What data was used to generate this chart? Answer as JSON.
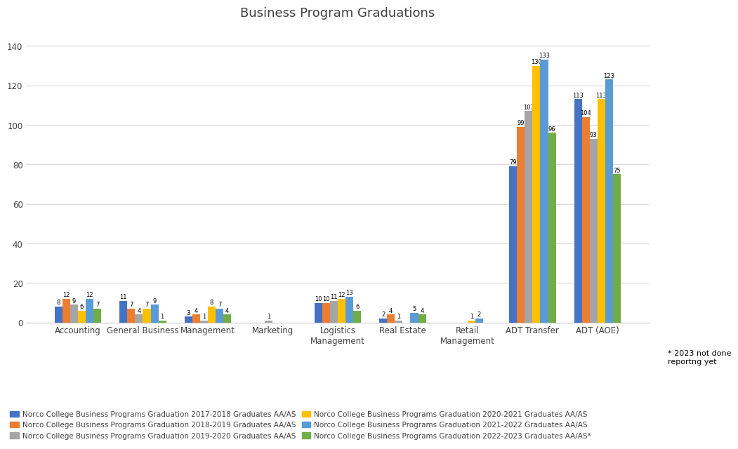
{
  "title": "Business Program Graduations",
  "categories": [
    "Accounting",
    "General Business",
    "Management",
    "Marketing",
    "Logistics\nManagement",
    "Real Estate",
    "Retail\nManagement",
    "ADT Transfer",
    "ADT (AOE)"
  ],
  "series": [
    {
      "label": "Norco College Business Programs Graduation 2017-2018 Graduates AA/AS",
      "color": "#4472C4",
      "values": [
        8,
        11,
        3,
        0,
        10,
        2,
        0,
        79,
        113
      ]
    },
    {
      "label": "Norco College Business Programs Graduation 2018-2019 Graduates AA/AS",
      "color": "#ED7D31",
      "values": [
        12,
        7,
        4,
        0,
        10,
        4,
        0,
        99,
        104
      ]
    },
    {
      "label": "Norco College Business Programs Graduation 2019-2020 Graduates AA/AS",
      "color": "#A5A5A5",
      "values": [
        9,
        4,
        1,
        1,
        11,
        1,
        0,
        107,
        93
      ]
    },
    {
      "label": "Norco College Business Programs Graduation 2020-2021 Graduates AA/AS",
      "color": "#FFC000",
      "values": [
        6,
        7,
        8,
        0,
        12,
        0,
        1,
        130,
        113
      ]
    },
    {
      "label": "Norco College Business Programs Graduation 2021-2022 Graduates AA/AS",
      "color": "#5B9BD5",
      "values": [
        12,
        9,
        7,
        0,
        13,
        5,
        2,
        133,
        123
      ]
    },
    {
      "label": "Norco College Business Programs Graduation 2022-2023 Graduates AA/AS*",
      "color": "#70AD47",
      "values": [
        7,
        1,
        4,
        0,
        6,
        4,
        0,
        96,
        75
      ]
    }
  ],
  "ylim": [
    0,
    150
  ],
  "yticks": [
    0,
    20,
    40,
    60,
    80,
    100,
    120,
    140
  ],
  "footnote": "* 2023 not done\nreportng yet",
  "background_color": "#FFFFFF",
  "grid_color": "#D9D9D9",
  "title_fontsize": 13,
  "legend_fontsize": 7.5,
  "bar_label_fontsize": 6.0,
  "tick_label_fontsize": 8.5,
  "bar_width": 0.12
}
